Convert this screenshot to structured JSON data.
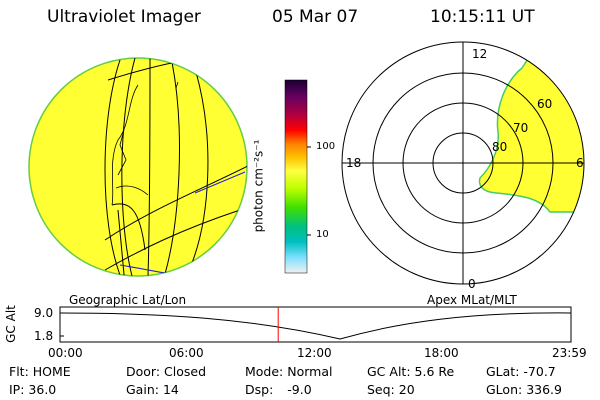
{
  "header": {
    "instrument": "Ultraviolet Imager",
    "date": "05 Mar 07",
    "time": "10:15:11 UT"
  },
  "left_panel": {
    "label": "Geographic Lat/Lon",
    "fill_color": "#ffff33"
  },
  "right_panel": {
    "label": "Apex MLat/MLT",
    "mlt_labels": {
      "top": "12",
      "left": "18",
      "right": "6",
      "bottom": "0"
    },
    "lat_labels": [
      "60",
      "70",
      "80"
    ],
    "fill_color": "#ffff33"
  },
  "colorbar": {
    "unit_label": "photon cm⁻²s⁻¹",
    "tick_labels": [
      "100",
      "10"
    ],
    "colors": [
      "#1a0030",
      "#600060",
      "#b00040",
      "#ff0000",
      "#ff8000",
      "#ffc000",
      "#ffff40",
      "#c0ff00",
      "#40e000",
      "#00c080",
      "#00c0c0",
      "#80e0ff",
      "#f0f0f0"
    ]
  },
  "altitude_plot": {
    "ylabel": "GC Alt",
    "ytick_labels": [
      "9.0",
      "1.8"
    ],
    "xtick_labels": [
      "00:00",
      "06:00",
      "12:00",
      "18:00",
      "23:59"
    ],
    "current_time_fraction": 0.427,
    "marker_color": "#ff0000"
  },
  "status": {
    "flt_label": "Flt:",
    "flt_value": "HOME",
    "door_label": "Door:",
    "door_value": "Closed",
    "mode_label": "Mode:",
    "mode_value": "Normal",
    "gcalt_label": "GC Alt:",
    "gcalt_value": "5.6 Re",
    "glat_label": "GLat:",
    "glat_value": "-70.7",
    "ip_label": "IP:",
    "ip_value": "36.0",
    "gain_label": "Gain:",
    "gain_value": "14",
    "dsp_label": "Dsp:",
    "dsp_value": "-9.0",
    "seq_label": "Seq:",
    "seq_value": "20",
    "glon_label": "GLon:",
    "glon_value": "336.9"
  }
}
